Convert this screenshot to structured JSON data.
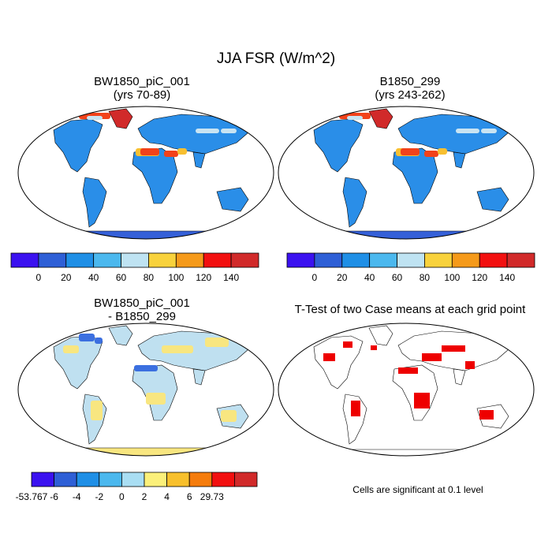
{
  "main_title": "JJA FSR (W/m^2)",
  "panels": [
    {
      "title1": "BW1850_piC_001",
      "title2": "(yrs 70-89)"
    },
    {
      "title1": "B1850_299",
      "title2": "(yrs 243-262)"
    },
    {
      "title1": "BW1850_piC_001",
      "title2": "- B1850_299"
    },
    {
      "title1": "T-Test of two Case means at each grid point"
    }
  ],
  "significance_note": "Cells are significant at 0.1 level",
  "colorbar_abs": {
    "colors": [
      "#3b12f0",
      "#2e5fd6",
      "#1f8fe6",
      "#4bb8ee",
      "#bfe3f2",
      "#f8d23c",
      "#f59a1a",
      "#f21010",
      "#d12a2a"
    ],
    "labels": [
      "0",
      "20",
      "40",
      "60",
      "80",
      "100",
      "120",
      "140"
    ]
  },
  "colorbar_diff": {
    "colors": [
      "#3b12f0",
      "#2e5fd6",
      "#1f8fe6",
      "#4bb8ee",
      "#a9def3",
      "#fbf07a",
      "#f8c02c",
      "#f57c0c",
      "#f21010",
      "#d12a2a"
    ],
    "labels": [
      "-53.767",
      "-6",
      "-4",
      "-2",
      "0",
      "2",
      "4",
      "6",
      "29.73"
    ]
  },
  "map_colors": {
    "ocean": "#ffffff",
    "land_abs": "#2a8ee8",
    "sahara_hot": "#f2421a",
    "sahara_warm": "#f8c030",
    "greenland": "#d12a2a",
    "antarctica": "#3560d8",
    "land_diff": "#bfe0f0",
    "diff_pos": "#f8e680",
    "diff_neg": "#3b6fe0",
    "sig": "#ee0000"
  }
}
